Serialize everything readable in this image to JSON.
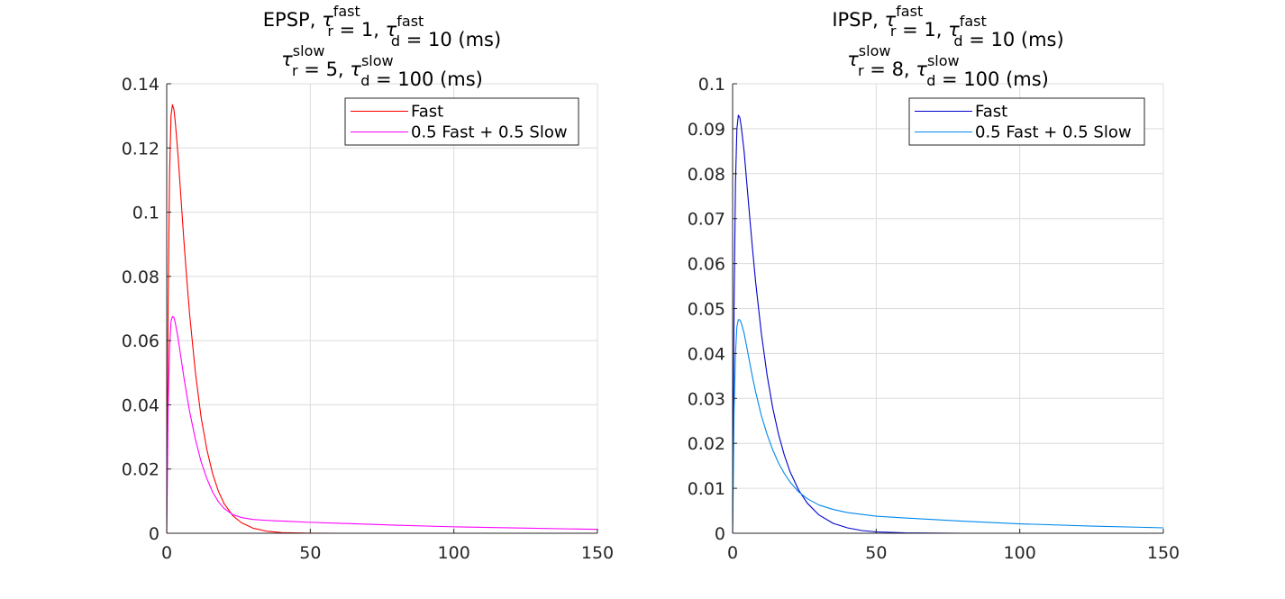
{
  "chart_data": [
    {
      "type": "line",
      "title_lines": [
        [
          {
            "t": "EPSP, "
          },
          {
            "t": "τ",
            "italic": true
          },
          {
            "t": "r",
            "sub": true,
            "sup_text": "fast"
          },
          {
            "t": " = 1, "
          },
          {
            "t": "τ",
            "italic": true
          },
          {
            "t": "d",
            "sub": true,
            "sup_text": "fast"
          },
          {
            "t": " = 10 (ms)"
          }
        ],
        [
          {
            "t": "τ",
            "italic": true
          },
          {
            "t": "r",
            "sub": true,
            "sup_text": "slow"
          },
          {
            "t": " = 5, "
          },
          {
            "t": "τ",
            "italic": true
          },
          {
            "t": "d",
            "sub": true,
            "sup_text": "slow"
          },
          {
            "t": " = 100 (ms)"
          }
        ]
      ],
      "xlim": [
        0,
        150
      ],
      "ylim": [
        0,
        0.14
      ],
      "xticks": [
        0,
        50,
        100,
        150
      ],
      "xtick_labels": [
        "0",
        "50",
        "100",
        "150"
      ],
      "yticks": [
        0,
        0.02,
        0.04,
        0.06,
        0.08,
        0.1,
        0.12,
        0.14
      ],
      "ytick_labels": [
        "0",
        "0.02",
        "0.04",
        "0.06",
        "0.08",
        "0.1",
        "0.12",
        "0.14"
      ],
      "grid": true,
      "legend_position": "top-right",
      "series": [
        {
          "name": "Fast",
          "color": "#ff0000",
          "x": [
            0,
            0.25,
            0.5,
            1,
            1.5,
            2,
            2.5,
            3,
            4,
            5,
            6,
            7,
            8,
            10,
            12,
            14,
            16,
            18,
            20,
            23,
            26,
            30,
            35,
            40,
            50,
            60,
            80,
            100,
            150
          ],
          "y": [
            0,
            0.032,
            0.071,
            0.112,
            0.13,
            0.1335,
            0.132,
            0.128,
            0.117,
            0.104,
            0.091,
            0.079,
            0.068,
            0.05,
            0.036,
            0.026,
            0.0185,
            0.0131,
            0.0092,
            0.0055,
            0.0033,
            0.0016,
            0.0006,
            0.0002,
            3e-05,
            0,
            0,
            0,
            0
          ]
        },
        {
          "name": "0.5 Fast + 0.5 Slow",
          "color": "#ff00ff",
          "x": [
            0,
            0.25,
            0.5,
            1,
            1.5,
            2,
            2.5,
            3,
            4,
            5,
            6,
            7,
            8,
            10,
            12,
            14,
            16,
            18,
            20,
            23,
            26,
            30,
            35,
            40,
            50,
            60,
            80,
            100,
            125,
            150
          ],
          "y": [
            0,
            0.018,
            0.039,
            0.058,
            0.066,
            0.0675,
            0.0672,
            0.0655,
            0.0605,
            0.0545,
            0.0485,
            0.043,
            0.0378,
            0.0292,
            0.0222,
            0.017,
            0.0128,
            0.0098,
            0.0077,
            0.0058,
            0.0049,
            0.0043,
            0.004,
            0.0038,
            0.0034,
            0.0031,
            0.0025,
            0.002,
            0.0016,
            0.0012
          ]
        }
      ]
    },
    {
      "type": "line",
      "title_lines": [
        [
          {
            "t": "IPSP, "
          },
          {
            "t": "τ",
            "italic": true
          },
          {
            "t": "r",
            "sub": true,
            "sup_text": "fast"
          },
          {
            "t": " = 1, "
          },
          {
            "t": "τ",
            "italic": true
          },
          {
            "t": "d",
            "sub": true,
            "sup_text": "fast"
          },
          {
            "t": " = 10 (ms)"
          }
        ],
        [
          {
            "t": "τ",
            "italic": true
          },
          {
            "t": "r",
            "sub": true,
            "sup_text": "slow"
          },
          {
            "t": " = 8, "
          },
          {
            "t": "τ",
            "italic": true
          },
          {
            "t": "d",
            "sub": true,
            "sup_text": "slow"
          },
          {
            "t": " = 100 (ms)"
          }
        ]
      ],
      "xlim": [
        0,
        150
      ],
      "ylim": [
        0,
        0.1
      ],
      "xticks": [
        0,
        50,
        100,
        150
      ],
      "xtick_labels": [
        "0",
        "50",
        "100",
        "150"
      ],
      "yticks": [
        0,
        0.01,
        0.02,
        0.03,
        0.04,
        0.05,
        0.06,
        0.07,
        0.08,
        0.09,
        0.1
      ],
      "ytick_labels": [
        "0",
        "0.01",
        "0.02",
        "0.03",
        "0.04",
        "0.05",
        "0.06",
        "0.07",
        "0.08",
        "0.09",
        "0.1"
      ],
      "grid": true,
      "legend_position": "top-right",
      "series": [
        {
          "name": "Fast",
          "color": "#0000cc",
          "x": [
            0,
            0.25,
            0.5,
            1,
            1.5,
            2,
            2.5,
            3,
            4,
            5,
            6,
            7,
            8,
            10,
            12,
            14,
            16,
            18,
            20,
            23,
            26,
            30,
            35,
            40,
            45,
            50,
            60,
            80,
            100,
            150
          ],
          "y": [
            0,
            0.022,
            0.05,
            0.078,
            0.09,
            0.093,
            0.0925,
            0.0905,
            0.085,
            0.0775,
            0.07,
            0.0628,
            0.056,
            0.0445,
            0.0352,
            0.0278,
            0.022,
            0.0174,
            0.0137,
            0.0096,
            0.0067,
            0.0041,
            0.0022,
            0.0012,
            0.0006,
            0.0003,
            8e-05,
            0,
            0,
            0
          ]
        },
        {
          "name": "0.5 Fast + 0.5 Slow",
          "color": "#0088ee",
          "x": [
            0,
            0.25,
            0.5,
            1,
            1.5,
            2,
            2.5,
            3,
            4,
            5,
            6,
            7,
            8,
            10,
            12,
            14,
            16,
            18,
            20,
            23,
            26,
            30,
            35,
            40,
            50,
            60,
            80,
            100,
            125,
            150
          ],
          "y": [
            0,
            0.012,
            0.027,
            0.04,
            0.046,
            0.0475,
            0.0475,
            0.0468,
            0.0445,
            0.0412,
            0.0378,
            0.0345,
            0.0315,
            0.0262,
            0.022,
            0.0185,
            0.0156,
            0.0133,
            0.0114,
            0.0092,
            0.0077,
            0.0063,
            0.0053,
            0.0046,
            0.0038,
            0.0034,
            0.0027,
            0.0021,
            0.0016,
            0.0012
          ]
        }
      ]
    }
  ]
}
